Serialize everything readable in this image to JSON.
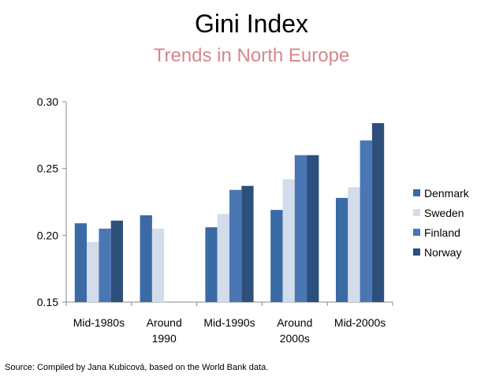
{
  "chart_data": {
    "type": "bar",
    "title": "Gini Index",
    "subtitle": "Trends in North Europe",
    "categories": [
      [
        "Mid-1980s"
      ],
      [
        "Around",
        "1990"
      ],
      [
        "Mid-1990s"
      ],
      [
        "Around",
        "2000s"
      ],
      [
        "Mid-2000s"
      ]
    ],
    "series": [
      {
        "name": "Denmark",
        "color": "#3a6ba5",
        "values": [
          0.209,
          0.215,
          0.206,
          0.219,
          0.228
        ]
      },
      {
        "name": "Sweden",
        "color": "#d3dcea",
        "values": [
          0.195,
          0.205,
          0.216,
          0.242,
          0.236
        ]
      },
      {
        "name": "Finland",
        "color": "#4a77b4",
        "values": [
          0.205,
          null,
          0.234,
          0.26,
          0.271
        ]
      },
      {
        "name": "Norway",
        "color": "#2d4f7c",
        "values": [
          0.211,
          null,
          0.237,
          0.26,
          0.284
        ]
      }
    ],
    "ylim": [
      0.15,
      0.3
    ],
    "yticks": [
      "0.15",
      "0.20",
      "0.25",
      "0.30"
    ],
    "grid": false,
    "legend": "right"
  },
  "source": "Source: Compiled by Jana Kubicová, based on the World Bank data."
}
